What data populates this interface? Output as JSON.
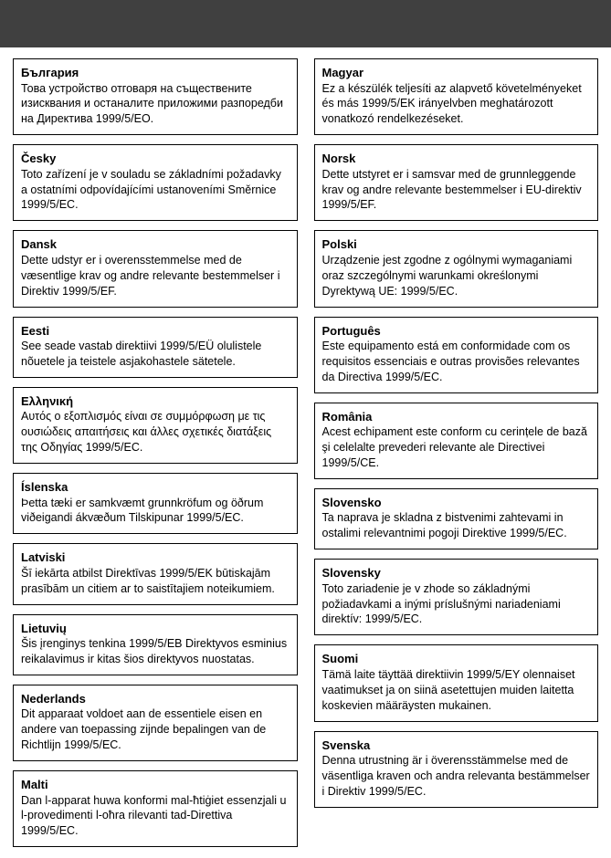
{
  "header_bg": "#404040",
  "left": [
    {
      "lang": "България",
      "text": "Това устройство отговаря на съществените изисквания и останалите приложими разпоредби на Директива 1999/5/EO."
    },
    {
      "lang": "Česky",
      "text": "Toto zařízení je v souladu se základními požadavky a ostatními odpovídajícími ustanoveními Směrnice 1999/5/EC."
    },
    {
      "lang": "Dansk",
      "text": "Dette udstyr er i overensstemmelse med de væsentlige krav og andre relevante bestemmelser i Direktiv 1999/5/EF."
    },
    {
      "lang": "Eesti",
      "text": "See seade vastab direktiivi 1999/5/EÜ olulistele nõuetele ja teistele asjakohastele sätetele."
    },
    {
      "lang": "Ελληνική",
      "text": "Αυτός ο εξοπλισμός είναι σε συμμόρφωση με τις ουσιώδεις απαιτήσεις και άλλες σχετικές διατάξεις της Οδηγίας 1999/5/EC."
    },
    {
      "lang": "Íslenska",
      "text": "Þetta tæki er samkvæmt grunnkröfum og öðrum viðeigandi ákvæðum Tilskipunar 1999/5/EC."
    },
    {
      "lang": "Latviski",
      "text": "Šī iekārta atbilst Direktīvas 1999/5/EK būtiskajām prasībām un citiem ar to saistītajiem noteikumiem."
    },
    {
      "lang": "Lietuvių",
      "text": "Šis įrenginys tenkina 1999/5/EB Direktyvos esminius reikalavimus ir kitas šios direktyvos nuostatas."
    },
    {
      "lang": "Nederlands",
      "text": "Dit apparaat voldoet aan de essentiele eisen en andere van toepassing zijnde bepalingen van de Richtlijn 1999/5/EC."
    },
    {
      "lang": "Malti",
      "text": "Dan l-apparat huwa konformi mal-ħtiġiet essenzjali u l-provedimenti l-oħra rilevanti tad-Direttiva 1999/5/EC."
    }
  ],
  "right": [
    {
      "lang": "Magyar",
      "text": "Ez a készülék teljesíti az alapvető követelményeket és más 1999/5/EK irányelvben meghatározott vonatkozó rendelkezéseket."
    },
    {
      "lang": "Norsk",
      "text": "Dette utstyret er i samsvar med de grunnleggende krav og andre relevante bestemmelser i EU-direktiv 1999/5/EF."
    },
    {
      "lang": "Polski",
      "text": "Urządzenie jest zgodne z ogólnymi wymaganiami oraz szczególnymi warunkami określonymi Dyrektywą UE: 1999/5/EC."
    },
    {
      "lang": "Português",
      "text": "Este equipamento está em conformidade com os requisitos essenciais e outras provisões relevantes da Directiva 1999/5/EC."
    },
    {
      "lang": "România",
      "text": "Acest echipament este conform cu cerințele de bază şi celelalte prevederi relevante ale Directivei 1999/5/CE."
    },
    {
      "lang": "Slovensko",
      "text": "Ta naprava je skladna z bistvenimi zahtevami in ostalimi relevantnimi pogoji Direktive 1999/5/EC."
    },
    {
      "lang": "Slovensky",
      "text": "Toto zariadenie je v zhode so základnými požiadavkami a inými príslušnými nariadeniami direktív: 1999/5/EC."
    },
    {
      "lang": "Suomi",
      "text": "Tämä laite täyttää direktiivin 1999/5/EY olennaiset vaatimukset ja on siinä asetettujen muiden laitetta koskevien määräysten mukainen."
    },
    {
      "lang": "Svenska",
      "text": "Denna utrustning är i överensstämmelse med de väsentliga kraven och andra relevanta bestämmelser i Direktiv 1999/5/EC."
    }
  ]
}
